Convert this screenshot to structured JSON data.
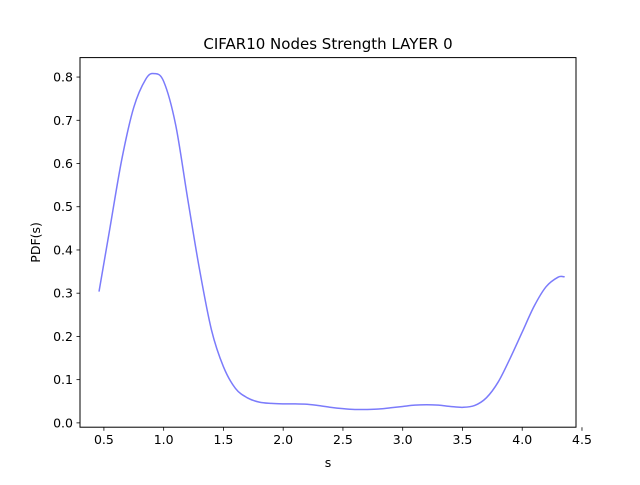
{
  "chart_data": {
    "type": "line",
    "title": "CIFAR10 Nodes Strength LAYER 0",
    "xlabel": "s",
    "ylabel": "PDF(s)",
    "xlim": [
      0.3,
      4.45
    ],
    "ylim": [
      -0.01,
      0.845
    ],
    "xticks": [
      {
        "value": 0.5,
        "label": "0.5"
      },
      {
        "value": 1.0,
        "label": "1.0"
      },
      {
        "value": 1.5,
        "label": "1.5"
      },
      {
        "value": 2.0,
        "label": "2.0"
      },
      {
        "value": 2.5,
        "label": "2.5"
      },
      {
        "value": 3.0,
        "label": "3.0"
      },
      {
        "value": 3.5,
        "label": "3.5"
      },
      {
        "value": 4.0,
        "label": "4.0"
      },
      {
        "value": 4.5,
        "label": "4.5"
      }
    ],
    "yticks": [
      {
        "value": 0.0,
        "label": "0.0"
      },
      {
        "value": 0.1,
        "label": "0.1"
      },
      {
        "value": 0.2,
        "label": "0.2"
      },
      {
        "value": 0.3,
        "label": "0.3"
      },
      {
        "value": 0.4,
        "label": "0.4"
      },
      {
        "value": 0.5,
        "label": "0.5"
      },
      {
        "value": 0.6,
        "label": "0.6"
      },
      {
        "value": 0.7,
        "label": "0.7"
      },
      {
        "value": 0.8,
        "label": "0.8"
      }
    ],
    "grid": false,
    "series": [
      {
        "color": "#7b7bfb",
        "x": [
          0.46,
          0.55,
          0.65,
          0.75,
          0.85,
          0.92,
          1.0,
          1.1,
          1.2,
          1.3,
          1.4,
          1.5,
          1.6,
          1.7,
          1.8,
          1.9,
          2.0,
          2.1,
          2.2,
          2.3,
          2.4,
          2.5,
          2.6,
          2.7,
          2.8,
          2.9,
          3.0,
          3.1,
          3.2,
          3.3,
          3.4,
          3.5,
          3.6,
          3.7,
          3.8,
          3.9,
          4.0,
          4.1,
          4.2,
          4.3,
          4.35
        ],
        "y": [
          0.305,
          0.45,
          0.61,
          0.73,
          0.795,
          0.808,
          0.79,
          0.69,
          0.52,
          0.355,
          0.215,
          0.13,
          0.08,
          0.058,
          0.048,
          0.045,
          0.044,
          0.044,
          0.043,
          0.04,
          0.036,
          0.033,
          0.031,
          0.031,
          0.032,
          0.035,
          0.038,
          0.041,
          0.042,
          0.041,
          0.038,
          0.036,
          0.04,
          0.058,
          0.095,
          0.15,
          0.21,
          0.27,
          0.315,
          0.337,
          0.338
        ]
      }
    ]
  }
}
